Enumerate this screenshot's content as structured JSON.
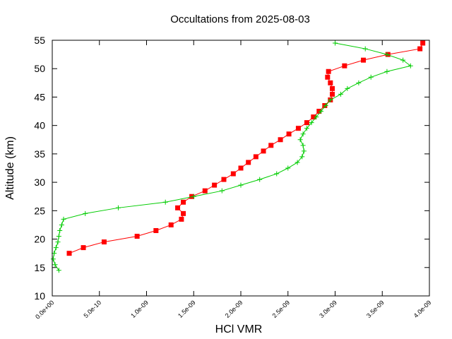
{
  "chart_data": {
    "type": "line",
    "title": "Occultations from 2025-08-03",
    "xlabel": "HCl VMR",
    "ylabel": "Altitude (km)",
    "xlim": [
      0,
      4e-09
    ],
    "ylim": [
      10,
      55
    ],
    "grid": false,
    "x_ticks": [
      0,
      5e-10,
      1e-09,
      1.5e-09,
      2e-09,
      2.5e-09,
      3e-09,
      3.5e-09,
      4e-09
    ],
    "x_tick_labels": [
      "0.0e+00",
      "5.0e-10",
      "1.0e-09",
      "1.5e-09",
      "2.0e-09",
      "2.5e-09",
      "3.0e-09",
      "3.5e-09",
      "4.0e-09"
    ],
    "y_ticks": [
      10,
      15,
      20,
      25,
      30,
      35,
      40,
      45,
      50,
      55
    ],
    "y_tick_labels": [
      "10",
      "15",
      "20",
      "25",
      "30",
      "35",
      "40",
      "45",
      "50",
      "55"
    ],
    "series": [
      {
        "name": "red",
        "color": "#ff0000",
        "marker": "square",
        "points": [
          [
            1.8e-10,
            17.5
          ],
          [
            3.3e-10,
            18.5
          ],
          [
            5.5e-10,
            19.5
          ],
          [
            9e-10,
            20.5
          ],
          [
            1.1e-09,
            21.5
          ],
          [
            1.26e-09,
            22.5
          ],
          [
            1.37e-09,
            23.5
          ],
          [
            1.39e-09,
            24.5
          ],
          [
            1.33e-09,
            25.5
          ],
          [
            1.39e-09,
            26.5
          ],
          [
            1.48e-09,
            27.5
          ],
          [
            1.62e-09,
            28.5
          ],
          [
            1.72e-09,
            29.5
          ],
          [
            1.82e-09,
            30.5
          ],
          [
            1.92e-09,
            31.5
          ],
          [
            2e-09,
            32.5
          ],
          [
            2.08e-09,
            33.5
          ],
          [
            2.16e-09,
            34.5
          ],
          [
            2.24e-09,
            35.5
          ],
          [
            2.32e-09,
            36.5
          ],
          [
            2.42e-09,
            37.5
          ],
          [
            2.51e-09,
            38.5
          ],
          [
            2.61e-09,
            39.5
          ],
          [
            2.7e-09,
            40.5
          ],
          [
            2.77e-09,
            41.5
          ],
          [
            2.83e-09,
            42.5
          ],
          [
            2.89e-09,
            43.5
          ],
          [
            2.95e-09,
            44.5
          ],
          [
            2.97e-09,
            45.5
          ],
          [
            2.97e-09,
            46.5
          ],
          [
            2.95e-09,
            47.5
          ],
          [
            2.92e-09,
            48.5
          ],
          [
            2.93e-09,
            49.5
          ],
          [
            3.1e-09,
            50.5
          ],
          [
            3.3e-09,
            51.5
          ],
          [
            3.56e-09,
            52.5
          ],
          [
            3.9e-09,
            53.5
          ],
          [
            3.93e-09,
            54.5
          ]
        ]
      },
      {
        "name": "green",
        "color": "#00cc00",
        "marker": "plus",
        "points": [
          [
            7e-11,
            14.5
          ],
          [
            3e-11,
            15.5
          ],
          [
            1e-11,
            16.5
          ],
          [
            2e-11,
            17.5
          ],
          [
            4e-11,
            18.5
          ],
          [
            6e-11,
            19.5
          ],
          [
            7e-11,
            20.5
          ],
          [
            8e-11,
            21.5
          ],
          [
            1e-10,
            22.5
          ],
          [
            1.2e-10,
            23.5
          ],
          [
            3.5e-10,
            24.5
          ],
          [
            7e-10,
            25.5
          ],
          [
            1.2e-09,
            26.5
          ],
          [
            1.5e-09,
            27.5
          ],
          [
            1.8e-09,
            28.5
          ],
          [
            2e-09,
            29.5
          ],
          [
            2.2e-09,
            30.5
          ],
          [
            2.38e-09,
            31.5
          ],
          [
            2.5e-09,
            32.5
          ],
          [
            2.6e-09,
            33.5
          ],
          [
            2.65e-09,
            34.5
          ],
          [
            2.67e-09,
            35.5
          ],
          [
            2.66e-09,
            36.5
          ],
          [
            2.63e-09,
            37.5
          ],
          [
            2.66e-09,
            38.5
          ],
          [
            2.7e-09,
            39.5
          ],
          [
            2.75e-09,
            40.5
          ],
          [
            2.8e-09,
            41.5
          ],
          [
            2.85e-09,
            42.5
          ],
          [
            2.9e-09,
            43.5
          ],
          [
            2.95e-09,
            44.5
          ],
          [
            3.06e-09,
            45.5
          ],
          [
            3.13e-09,
            46.5
          ],
          [
            3.25e-09,
            47.5
          ],
          [
            3.38e-09,
            48.5
          ],
          [
            3.55e-09,
            49.5
          ],
          [
            3.8e-09,
            50.5
          ],
          [
            3.72e-09,
            51.5
          ],
          [
            3.55e-09,
            52.5
          ],
          [
            3.32e-09,
            53.5
          ],
          [
            3e-09,
            54.5
          ]
        ]
      }
    ]
  }
}
